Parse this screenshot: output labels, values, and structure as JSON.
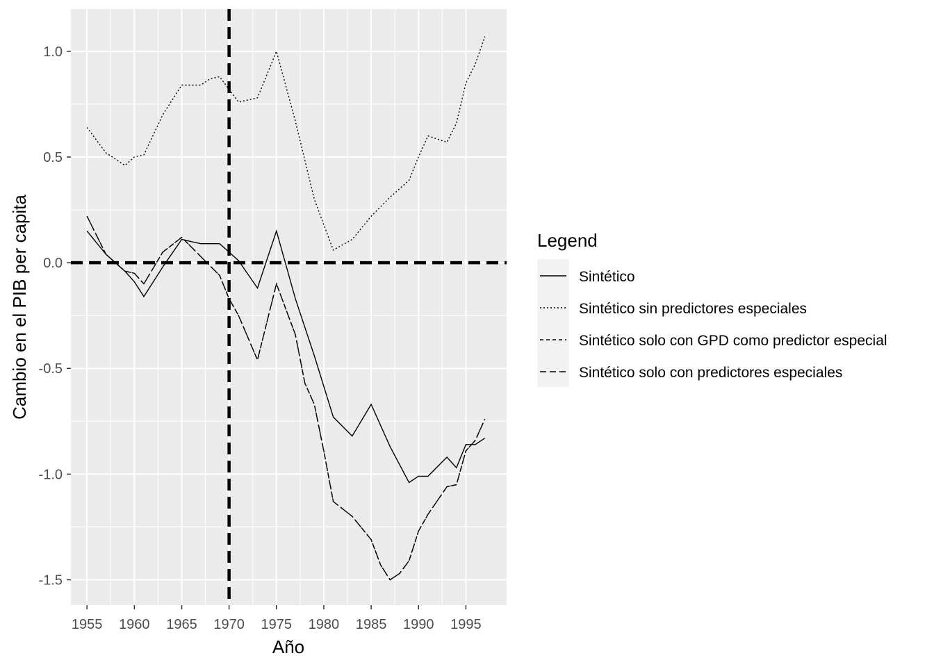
{
  "chart_data": {
    "type": "line",
    "title": "",
    "xlabel": "Año",
    "ylabel": "Cambio en el PIB per capita",
    "xlim": [
      1953.3,
      1999.3
    ],
    "ylim": [
      -1.62,
      1.2
    ],
    "x_ticks": [
      1955,
      1960,
      1965,
      1970,
      1975,
      1980,
      1985,
      1990,
      1995
    ],
    "x_tick_labels": [
      "1955",
      "1960",
      "1965",
      "1970",
      "1975",
      "1980",
      "1985",
      "1990",
      "1995"
    ],
    "y_ticks": [
      1.0,
      0.5,
      0.0,
      -0.5,
      -1.0,
      -1.5
    ],
    "y_tick_labels": [
      "1.0",
      "0.5",
      "0.0",
      "-0.5",
      "-1.0",
      "-1.5"
    ],
    "grid": true,
    "panel_background": "#ebebeb",
    "grid_color": "#ffffff",
    "line_color": "#000000",
    "reference_lines": {
      "vertical_x": 1970,
      "horizontal_y": 0
    },
    "legend": {
      "title": "Legend",
      "position": "right"
    },
    "series": [
      {
        "name": "Sintético",
        "dash": "solid",
        "x": [
          1955,
          1957,
          1959,
          1960,
          1961,
          1963,
          1965,
          1966,
          1967,
          1969,
          1971,
          1973,
          1975,
          1977,
          1979,
          1981,
          1983,
          1985,
          1987,
          1989,
          1990,
          1991,
          1993,
          1994,
          1995,
          1996,
          1997
        ],
        "y": [
          0.15,
          0.04,
          -0.04,
          -0.09,
          -0.16,
          -0.02,
          0.11,
          0.1,
          0.09,
          0.09,
          0.01,
          -0.12,
          0.15,
          -0.17,
          -0.44,
          -0.73,
          -0.82,
          -0.67,
          -0.87,
          -1.04,
          -1.01,
          -1.01,
          -0.92,
          -0.97,
          -0.86,
          -0.86,
          -0.83
        ]
      },
      {
        "name": "Sintético sin predictores especiales",
        "dash": "dotted",
        "x": [
          1955,
          1957,
          1959,
          1960,
          1961,
          1963,
          1965,
          1966,
          1967,
          1968,
          1969,
          1970,
          1971,
          1973,
          1975,
          1977,
          1979,
          1980,
          1981,
          1983,
          1985,
          1987,
          1989,
          1990,
          1991,
          1993,
          1994,
          1995,
          1996,
          1997
        ],
        "y": [
          0.64,
          0.52,
          0.46,
          0.5,
          0.51,
          0.7,
          0.84,
          0.84,
          0.84,
          0.87,
          0.88,
          0.82,
          0.76,
          0.78,
          1.0,
          0.67,
          0.3,
          0.18,
          0.06,
          0.11,
          0.22,
          0.31,
          0.39,
          0.5,
          0.6,
          0.57,
          0.66,
          0.85,
          0.94,
          1.07
        ]
      },
      {
        "name": "Sintético solo con GPD como predictor especial",
        "dash": "dashed",
        "x": [
          1955,
          1957,
          1959,
          1960,
          1961,
          1963,
          1965,
          1967,
          1969,
          1970,
          1971,
          1973,
          1975,
          1977,
          1978,
          1979,
          1980,
          1981,
          1983,
          1985,
          1986,
          1987,
          1988,
          1989,
          1990,
          1991,
          1993,
          1994,
          1995,
          1996,
          1997
        ],
        "y": [
          0.22,
          0.04,
          -0.04,
          -0.05,
          -0.1,
          0.05,
          0.12,
          0.03,
          -0.06,
          -0.17,
          -0.25,
          -0.46,
          -0.1,
          -0.34,
          -0.57,
          -0.67,
          -0.89,
          -1.13,
          -1.2,
          -1.31,
          -1.43,
          -1.5,
          -1.47,
          -1.41,
          -1.27,
          -1.19,
          -1.06,
          -1.05,
          -0.89,
          -0.84,
          -0.74
        ]
      },
      {
        "name": "Sintético solo con predictores especiales",
        "dash": "longdash",
        "x": [
          1955,
          1957,
          1959,
          1960,
          1961,
          1963,
          1965,
          1967,
          1969,
          1970,
          1971,
          1973,
          1975,
          1977,
          1978,
          1979,
          1980,
          1981,
          1983,
          1985,
          1986,
          1987,
          1988,
          1989,
          1990,
          1991,
          1993,
          1994,
          1995,
          1996,
          1997
        ],
        "y": [
          0.22,
          0.04,
          -0.04,
          -0.05,
          -0.1,
          0.05,
          0.12,
          0.03,
          -0.06,
          -0.17,
          -0.25,
          -0.46,
          -0.1,
          -0.34,
          -0.57,
          -0.67,
          -0.89,
          -1.13,
          -1.2,
          -1.31,
          -1.43,
          -1.5,
          -1.47,
          -1.41,
          -1.27,
          -1.19,
          -1.06,
          -1.05,
          -0.89,
          -0.84,
          -0.74
        ]
      }
    ]
  }
}
